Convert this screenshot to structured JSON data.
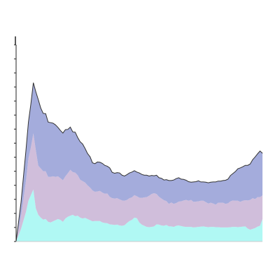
{
  "chart_data": {
    "type": "area",
    "stacked": true,
    "title": "",
    "xlabel": "",
    "ylabel": "",
    "xlim": [
      0,
      100
    ],
    "ylim": [
      0,
      70
    ],
    "ytick_values": [
      0,
      5,
      10,
      15,
      20,
      25,
      30,
      35,
      40,
      45,
      50,
      55,
      60,
      65,
      70
    ],
    "grid": false,
    "legend": "none",
    "outline_color": "#333333",
    "x": [
      0,
      2,
      4,
      5,
      6,
      7,
      8,
      9,
      10,
      11,
      12,
      13,
      14,
      15,
      16,
      17,
      18,
      19,
      20,
      21,
      22,
      23,
      24,
      25,
      26,
      27,
      28,
      29,
      30,
      31,
      32,
      33,
      34,
      35,
      36,
      37,
      38,
      39,
      40,
      41,
      42,
      43,
      44,
      45,
      46,
      47,
      48,
      49,
      50,
      51,
      52,
      53,
      54,
      55,
      56,
      57,
      58,
      59,
      60,
      61,
      62,
      63,
      64,
      65,
      66,
      67,
      68,
      69,
      70,
      71,
      72,
      73,
      74,
      75,
      76,
      77,
      78,
      79,
      80,
      81,
      82,
      83,
      84,
      85,
      86,
      87,
      88,
      89,
      90,
      91,
      92,
      93,
      94,
      95,
      96,
      97,
      98,
      99,
      100
    ],
    "series": [
      {
        "color": "#b0f8f4",
        "values": [
          0,
          4.5,
          10.5,
          14.5,
          16.5,
          18.5,
          11.8,
          9.5,
          8.5,
          7.8,
          8.0,
          7.0,
          6.8,
          7.2,
          7.6,
          8.0,
          7.7,
          7.0,
          8.2,
          8.8,
          9.2,
          9.5,
          9.0,
          9.2,
          8.5,
          8.2,
          8.4,
          8.0,
          7.6,
          7.2,
          7.3,
          7.3,
          7.3,
          6.8,
          6.6,
          6.5,
          6.1,
          6.0,
          5.9,
          6.0,
          5.7,
          5.6,
          5.8,
          6.6,
          7.3,
          7.7,
          8.5,
          8.3,
          6.8,
          6.0,
          5.6,
          5.2,
          5.1,
          5.2,
          5.4,
          6.1,
          6.0,
          5.7,
          5.6,
          5.9,
          5.4,
          5.4,
          5.2,
          5.6,
          5.7,
          5.5,
          5.3,
          5.2,
          5.2,
          5.2,
          5.0,
          5.1,
          5.2,
          5.3,
          5.4,
          5.2,
          5.1,
          5.2,
          5.2,
          5.1,
          5.1,
          5.0,
          5.0,
          5.0,
          5.0,
          5.1,
          5.2,
          5.2,
          5.1,
          5.2,
          5.3,
          5.4,
          4.6,
          4.2,
          4.5,
          4.8,
          5.3,
          5.6,
          8.0
        ]
      },
      {
        "color": "#d0bedb",
        "values": [
          0,
          4.5,
          11.0,
          15.0,
          17.0,
          20.0,
          20.7,
          17.5,
          17.5,
          17.2,
          17.0,
          16.0,
          16.2,
          16.0,
          15.4,
          15.2,
          14.8,
          14.8,
          15.0,
          15.5,
          16.3,
          15.2,
          15.5,
          14.4,
          13.5,
          13.3,
          12.6,
          12.0,
          11.6,
          11.0,
          10.4,
          10.5,
          10.7,
          10.6,
          10.4,
          10.6,
          9.8,
          9.4,
          9.4,
          9.4,
          9.3,
          9.0,
          8.7,
          8.2,
          8.1,
          8.0,
          8.0,
          7.8,
          8.8,
          9.5,
          10.1,
          10.6,
          11.2,
          11.7,
          11.8,
          10.8,
          9.9,
          9.6,
          9.1,
          8.5,
          8.0,
          8.5,
          8.2,
          8.1,
          8.5,
          8.8,
          9.3,
          9.6,
          9.3,
          9.6,
          9.1,
          9.1,
          9.1,
          9.2,
          9.1,
          8.8,
          8.4,
          8.6,
          8.3,
          8.0,
          8.7,
          8.8,
          8.8,
          8.4,
          8.6,
          9.2,
          9.4,
          9.3,
          9.4,
          8.9,
          9.2,
          9.3,
          10.0,
          10.6,
          10.9,
          10.3,
          10.5,
          10.2,
          8.4
        ]
      },
      {
        "color": "#a4acdc",
        "values": [
          0,
          5.0,
          11.0,
          13.0,
          15.5,
          18.0,
          20.8,
          23.5,
          21.5,
          20.6,
          20.5,
          19.5,
          19.3,
          18.9,
          18.5,
          17.4,
          17.0,
          16.8,
          16.6,
          15.6,
          15.2,
          14.3,
          14.4,
          13.4,
          13.5,
          13.2,
          12.1,
          11.3,
          11.0,
          9.8,
          10.0,
          10.5,
          10.2,
          10.4,
          10.1,
          9.7,
          10.3,
          9.2,
          9.0,
          9.1,
          9.4,
          9.0,
          8.8,
          9.0,
          9.0,
          9.0,
          8.7,
          8.6,
          8.8,
          8.4,
          7.9,
          7.8,
          7.0,
          6.6,
          6.2,
          6.7,
          6.8,
          7.2,
          7.2,
          7.6,
          8.3,
          7.8,
          8.5,
          8.7,
          8.5,
          7.9,
          7.5,
          7.0,
          6.8,
          6.3,
          7.1,
          7.1,
          7.3,
          6.7,
          6.7,
          7.1,
          7.4,
          7.3,
          7.7,
          8.1,
          7.7,
          7.7,
          7.9,
          8.4,
          8.6,
          9.2,
          9.6,
          10.4,
          11.4,
          12.1,
          12.1,
          12.4,
          12.5,
          12.8,
          13.7,
          15.0,
          15.4,
          16.4,
          15.0
        ]
      }
    ]
  }
}
